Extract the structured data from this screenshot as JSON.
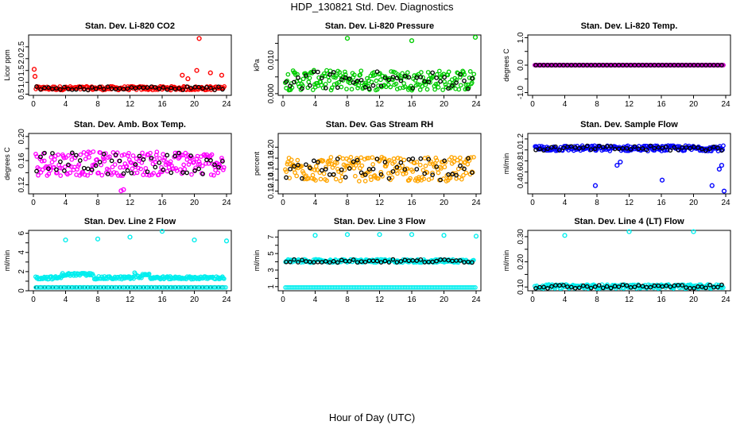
{
  "title": "HDP_130821  Std. Dev. Diagnostics",
  "x_axis_label": "Hour of Day (UTC)",
  "chart_data": [
    {
      "type": "scatter",
      "title": "Stan. Dev. Li-820 CO2",
      "ylabel": "Licor ppm",
      "color": "#ff0000",
      "xlim": [
        0,
        24
      ],
      "ylim": [
        0.45,
        3.0
      ],
      "yticks": [
        0.5,
        1.0,
        1.5,
        2.0,
        2.5
      ],
      "ytick_labels": [
        "0.5",
        "1.0",
        "1.5",
        "2.0",
        "2.5"
      ],
      "xticks": [
        0,
        4,
        8,
        12,
        16,
        20,
        24
      ],
      "base": 0.75,
      "spread": 0.08,
      "outliers": [
        [
          0.1,
          1.55
        ],
        [
          0.2,
          1.25
        ],
        [
          18.5,
          1.3
        ],
        [
          19.2,
          1.15
        ],
        [
          20.3,
          1.5
        ],
        [
          20.6,
          2.85
        ],
        [
          22.0,
          1.4
        ],
        [
          23.4,
          1.3
        ]
      ]
    },
    {
      "type": "scatter",
      "title": "Stan. Dev. Li-820 Pressure",
      "ylabel": "kPa",
      "color": "#00cc00",
      "xlim": [
        0,
        24
      ],
      "ylim": [
        -0.0005,
        0.0175
      ],
      "yticks": [
        0.0,
        0.005,
        0.01,
        0.015
      ],
      "ytick_labels": [
        "0.000",
        "",
        "0.010",
        ""
      ],
      "xticks": [
        0,
        4,
        8,
        12,
        16,
        20,
        24
      ],
      "base": 0.004,
      "spread": 0.003,
      "outliers": [
        [
          8.0,
          0.0165
        ],
        [
          16.0,
          0.0158
        ],
        [
          23.9,
          0.0168
        ]
      ]
    },
    {
      "type": "scatter",
      "title": "Stan. Dev. Li-820 Temp.",
      "ylabel": "degrees C",
      "color": "#cc00cc",
      "xlim": [
        0,
        24
      ],
      "ylim": [
        -1.1,
        1.1
      ],
      "yticks": [
        -1.0,
        -0.5,
        0.0,
        0.5,
        1.0
      ],
      "ytick_labels": [
        "-1.0",
        "",
        "0.0",
        "",
        "1.0"
      ],
      "xticks": [
        0,
        4,
        8,
        12,
        16,
        20,
        24
      ],
      "base": 0.0,
      "spread": 0.0,
      "outliers": []
    },
    {
      "type": "scatter",
      "title": "Stan. Dev. Amb. Box Temp.",
      "ylabel": "degrees C",
      "color": "#ff00ff",
      "xlim": [
        0,
        24
      ],
      "ylim": [
        0.105,
        0.205
      ],
      "yticks": [
        0.12,
        0.14,
        0.16,
        0.18,
        0.2
      ],
      "ytick_labels": [
        "0.12",
        "",
        "0.16",
        "",
        "0.20"
      ],
      "xticks": [
        0,
        4,
        8,
        12,
        16,
        20,
        24
      ],
      "base": 0.155,
      "spread": 0.02,
      "outliers": [
        [
          10.9,
          0.11
        ],
        [
          11.2,
          0.112
        ]
      ]
    },
    {
      "type": "scatter",
      "title": "Stan. Dev. Gas Stream RH",
      "ylabel": "percent",
      "color": "#ffa500",
      "xlim": [
        0,
        24
      ],
      "ylim": [
        0.115,
        0.225
      ],
      "yticks": [
        0.12,
        0.14,
        0.16,
        0.18,
        0.2
      ],
      "ytick_labels": [
        "0.12",
        "0.14",
        "0.16",
        "0.18",
        "0.20"
      ],
      "xticks": [
        0,
        4,
        8,
        12,
        16,
        20,
        24
      ],
      "base": 0.16,
      "spread": 0.022,
      "outliers": []
    },
    {
      "type": "scatter",
      "title": "Stan. Dev. Sample Flow",
      "ylabel": "ml/min",
      "color": "#0000ff",
      "xlim": [
        0,
        24
      ],
      "ylim": [
        0.2,
        1.3
      ],
      "yticks": [
        0.4,
        0.6,
        0.8,
        1.0,
        1.2
      ],
      "ytick_labels": [
        "0.4",
        "0.6",
        "0.8",
        "1.0",
        "1.2"
      ],
      "xticks": [
        0,
        4,
        8,
        12,
        16,
        20,
        24
      ],
      "base": 1.03,
      "spread": 0.05,
      "outliers": [
        [
          7.8,
          0.35
        ],
        [
          16.1,
          0.45
        ],
        [
          22.3,
          0.35
        ],
        [
          23.8,
          0.25
        ],
        [
          23.2,
          0.65
        ],
        [
          23.5,
          0.72
        ],
        [
          10.5,
          0.72
        ],
        [
          10.9,
          0.78
        ]
      ]
    },
    {
      "type": "scatter",
      "title": "Stan. Dev. Line 2 Flow",
      "ylabel": "ml/min",
      "color": "#00eeee",
      "xlim": [
        0,
        24
      ],
      "ylim": [
        0,
        6.3
      ],
      "yticks": [
        0,
        1,
        2,
        3,
        4,
        5,
        6
      ],
      "ytick_labels": [
        "0",
        "",
        "2",
        "",
        "4",
        "",
        "6"
      ],
      "xticks": [
        0,
        4,
        8,
        12,
        16,
        20,
        24
      ],
      "base": 1.35,
      "spread": 0.15,
      "outliers": [
        [
          4.0,
          5.3
        ],
        [
          8.0,
          5.4
        ],
        [
          12.0,
          5.6
        ],
        [
          16.0,
          6.2
        ],
        [
          20.0,
          5.3
        ],
        [
          24.0,
          5.2
        ]
      ]
    },
    {
      "type": "scatter",
      "title": "Stan. Dev. Line 3 Flow",
      "ylabel": "ml/min",
      "color": "#00eeee",
      "xlim": [
        0,
        24
      ],
      "ylim": [
        0.5,
        7.8
      ],
      "yticks": [
        1,
        2,
        3,
        4,
        5,
        6,
        7
      ],
      "ytick_labels": [
        "1",
        "",
        "3",
        "",
        "5",
        "",
        "7"
      ],
      "xticks": [
        0,
        4,
        8,
        12,
        16,
        20,
        24
      ],
      "base": 4.1,
      "spread": 0.2,
      "outliers": [
        [
          4.0,
          7.2
        ],
        [
          8.0,
          7.3
        ],
        [
          12.0,
          7.3
        ],
        [
          16.0,
          7.3
        ],
        [
          20.0,
          7.2
        ],
        [
          24.0,
          7.1
        ]
      ]
    },
    {
      "type": "scatter",
      "title": "Stan. Dev. Line 4 (LT) Flow",
      "ylabel": "ml/min",
      "color": "#00eeee",
      "xlim": [
        0,
        24
      ],
      "ylim": [
        0.085,
        0.325
      ],
      "yticks": [
        0.1,
        0.15,
        0.2,
        0.25,
        0.3
      ],
      "ytick_labels": [
        "0.10",
        "",
        "0.20",
        "",
        "0.30"
      ],
      "xticks": [
        0,
        4,
        8,
        12,
        16,
        20,
        24
      ],
      "base": 0.102,
      "spread": 0.008,
      "outliers": [
        [
          4.0,
          0.305
        ],
        [
          12.0,
          0.32
        ],
        [
          20.0,
          0.32
        ]
      ]
    }
  ]
}
